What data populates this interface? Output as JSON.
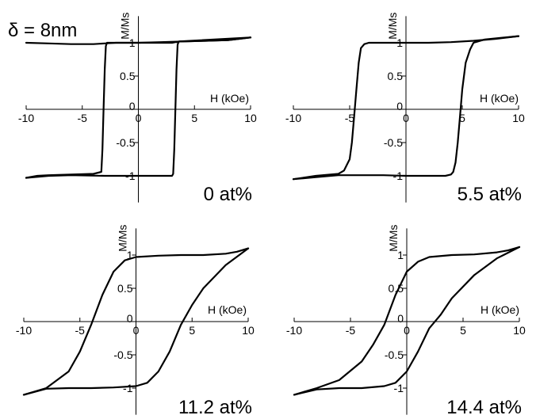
{
  "figure_label": "δ = 8nm",
  "chart_data": [
    {
      "type": "line",
      "label": "0 at%",
      "xlabel": "H (kOe)",
      "ylabel": "M/Ms",
      "xlim": [
        -10,
        10
      ],
      "ylim": [
        -1.4,
        1.4
      ],
      "x_ticks": [
        -10,
        -5,
        0,
        5,
        10
      ],
      "y_ticks": [
        -1,
        -0.5,
        0,
        0.5,
        1
      ],
      "series": [
        {
          "x": [
            -10,
            -9,
            -8,
            -6,
            -4,
            -3.3,
            -3.2,
            -3.1,
            -3.0,
            -2.9,
            -2.8,
            -2.7,
            0,
            3,
            3.3,
            3.4,
            3.5,
            3.7,
            4,
            6,
            8,
            9,
            10
          ],
          "y": [
            -1.03,
            -1.0,
            -0.99,
            -0.98,
            -0.97,
            -0.94,
            -0.6,
            0.0,
            0.6,
            0.95,
            1.0,
            1.0,
            1.0,
            1.0,
            1.01,
            1.01,
            1.01,
            1.02,
            1.02,
            1.03,
            1.04,
            1.06,
            1.08
          ]
        },
        {
          "x": [
            10,
            8,
            6,
            4,
            2,
            0,
            -2,
            -3,
            -4,
            -6,
            -8,
            -10
          ],
          "y": [
            1.08,
            1.04,
            1.03,
            1.02,
            1.01,
            1.0,
            1.0,
            0.99,
            0.98,
            0.98,
            0.99,
            1.0
          ]
        },
        {
          "x": [
            10,
            3.6,
            3.5,
            3.4,
            3.3,
            3.2,
            3.1,
            3.0,
            0,
            -3,
            -6,
            -8,
            -10
          ],
          "y": [
            1.08,
            1.02,
            0.97,
            0.6,
            0.0,
            -0.6,
            -0.97,
            -1.0,
            -1.0,
            -1.0,
            -0.99,
            -1.0,
            -1.03
          ]
        }
      ]
    },
    {
      "type": "line",
      "label": "5.5 at%",
      "xlabel": "H (kOe)",
      "ylabel": "M/Ms",
      "xlim": [
        -10,
        10
      ],
      "ylim": [
        -1.4,
        1.4
      ],
      "x_ticks": [
        -10,
        -5,
        0,
        5,
        10
      ],
      "y_ticks": [
        -1,
        -0.5,
        0,
        0.5,
        1
      ],
      "series": [
        {
          "x": [
            -10,
            -8,
            -6,
            -5.5,
            -5.0,
            -4.8,
            -4.6,
            -4.4,
            -4.2,
            -4.0,
            -3.7,
            -3.3,
            -2,
            0,
            2,
            4,
            6,
            8,
            10
          ],
          "y": [
            -1.05,
            -1.0,
            -0.97,
            -0.92,
            -0.75,
            -0.5,
            -0.1,
            0.3,
            0.7,
            0.92,
            0.98,
            1.0,
            1.0,
            1.0,
            1.0,
            1.01,
            1.03,
            1.06,
            1.1
          ]
        },
        {
          "x": [
            10,
            7,
            6.0,
            5.7,
            5.3,
            5.0,
            4.8,
            4.6,
            4.4,
            4.2,
            4.0,
            3.5,
            2,
            0,
            -2,
            -4,
            -6,
            -8,
            -10
          ],
          "y": [
            1.1,
            1.05,
            1.0,
            0.9,
            0.7,
            0.3,
            -0.1,
            -0.5,
            -0.8,
            -0.94,
            -0.98,
            -1.0,
            -1.0,
            -1.0,
            -0.99,
            -0.99,
            -0.99,
            -1.02,
            -1.05
          ]
        }
      ]
    },
    {
      "type": "line",
      "label": "11.2 at%",
      "xlabel": "H (kOe)",
      "ylabel": "M/Ms",
      "xlim": [
        -10,
        10
      ],
      "ylim": [
        -1.4,
        1.4
      ],
      "x_ticks": [
        -10,
        -5,
        0,
        5,
        10
      ],
      "y_ticks": [
        -1,
        -0.5,
        0,
        0.5,
        1
      ],
      "series": [
        {
          "x": [
            -10,
            -8,
            -6,
            -5,
            -4,
            -3,
            -2,
            -1,
            0,
            2,
            4,
            6,
            8,
            9,
            10
          ],
          "y": [
            -1.1,
            -1.0,
            -0.75,
            -0.45,
            -0.05,
            0.4,
            0.75,
            0.92,
            0.97,
            0.99,
            1.0,
            1.0,
            1.02,
            1.05,
            1.1
          ]
        },
        {
          "x": [
            10,
            8,
            6,
            5,
            4,
            3,
            2,
            1,
            0,
            -2,
            -4,
            -6,
            -8,
            -10
          ],
          "y": [
            1.1,
            0.85,
            0.5,
            0.25,
            -0.05,
            -0.45,
            -0.75,
            -0.92,
            -0.97,
            -0.99,
            -1.0,
            -1.0,
            -1.01,
            -1.1
          ]
        }
      ]
    },
    {
      "type": "line",
      "label": "14.4 at%",
      "xlabel": "H (kOe)",
      "ylabel": "M/Ms",
      "xlim": [
        -10,
        10
      ],
      "ylim": [
        -1.4,
        1.4
      ],
      "x_ticks": [
        -10,
        -5,
        0,
        5,
        10
      ],
      "y_ticks": [
        -1,
        -0.5,
        0,
        0.5,
        1
      ],
      "series": [
        {
          "x": [
            -10,
            -8,
            -6,
            -4,
            -3,
            -2,
            -1,
            0,
            1,
            2,
            4,
            6,
            8,
            9,
            10
          ],
          "y": [
            -1.1,
            -1.0,
            -0.88,
            -0.6,
            -0.35,
            -0.05,
            0.4,
            0.75,
            0.9,
            0.97,
            1.0,
            1.01,
            1.04,
            1.07,
            1.12
          ]
        },
        {
          "x": [
            10,
            8,
            6,
            4,
            3,
            2,
            1,
            0,
            -1,
            -2,
            -4,
            -6,
            -8,
            -10
          ],
          "y": [
            1.12,
            0.95,
            0.7,
            0.35,
            0.1,
            -0.1,
            -0.45,
            -0.75,
            -0.92,
            -0.97,
            -1.0,
            -1.0,
            -1.02,
            -1.1
          ]
        }
      ]
    }
  ]
}
